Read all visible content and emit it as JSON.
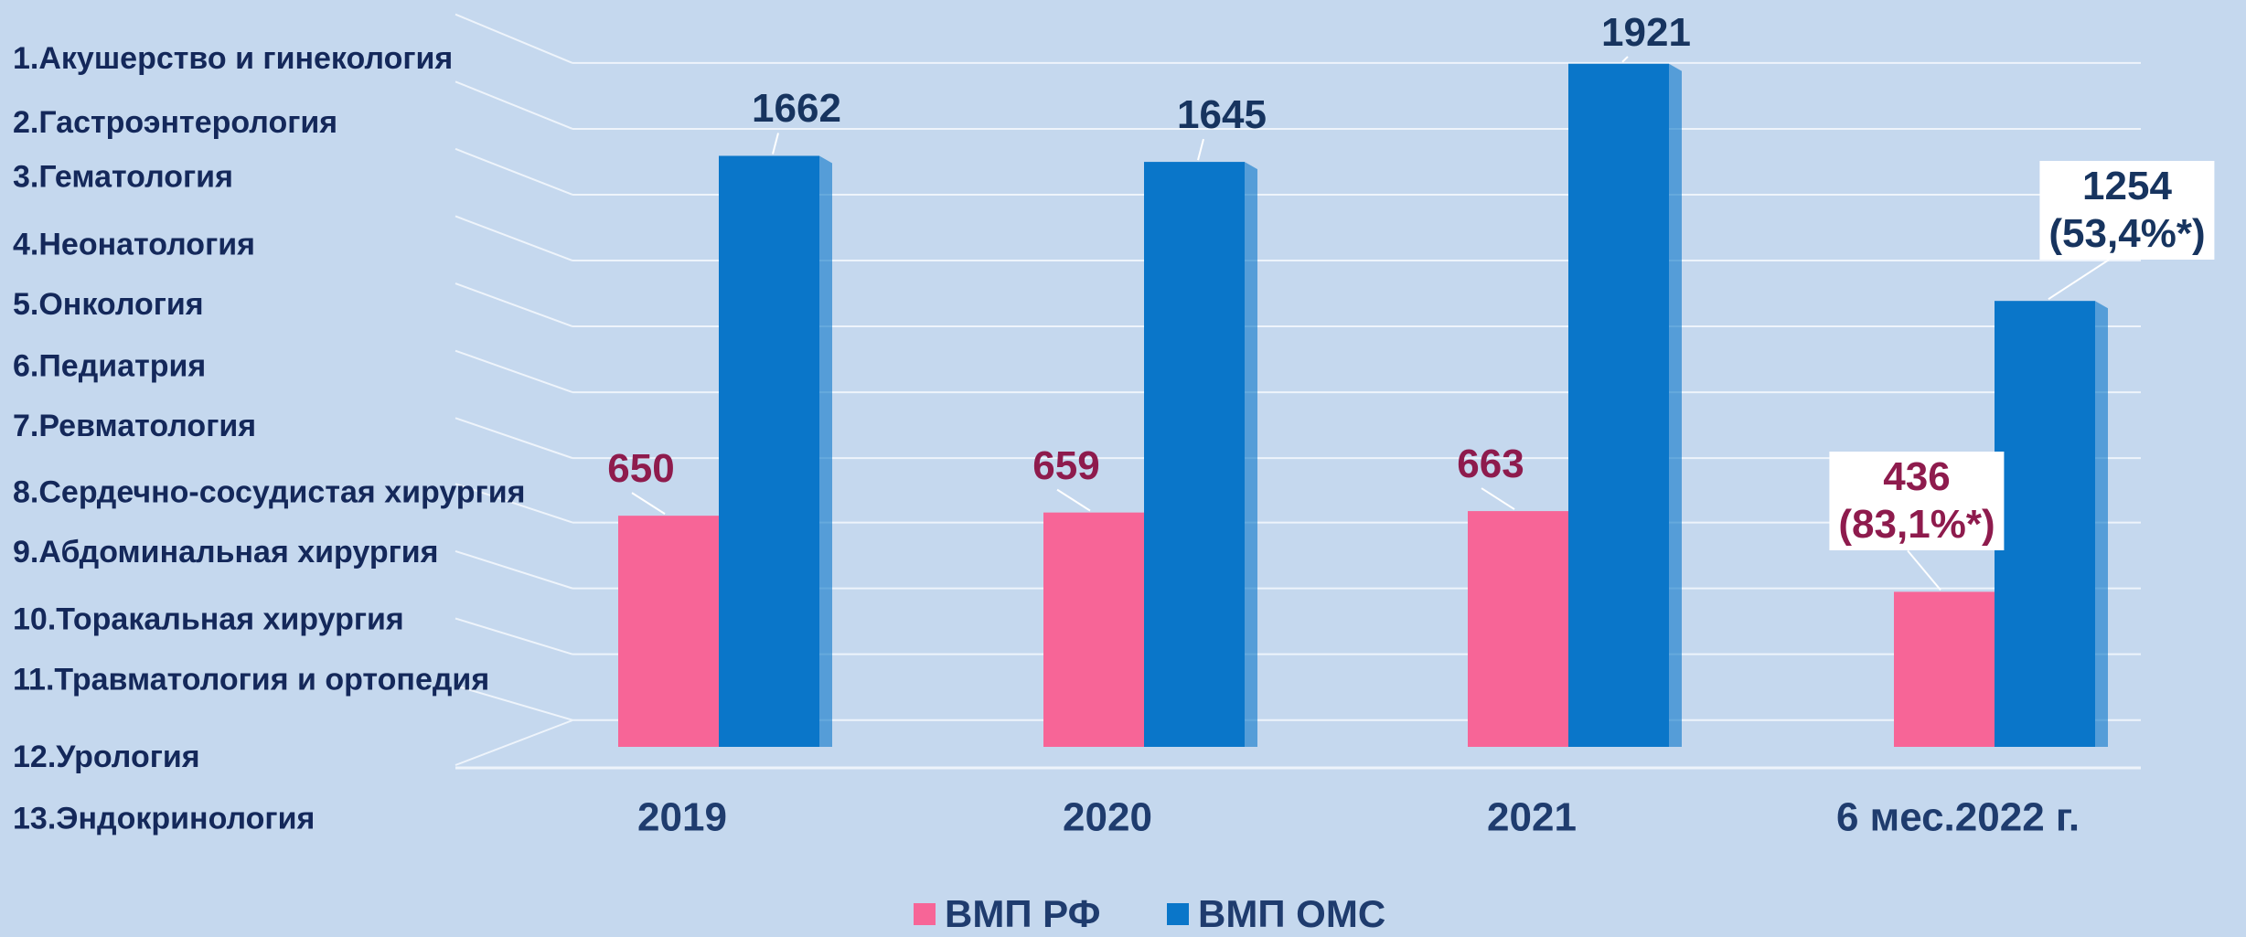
{
  "chart_data": {
    "type": "bar",
    "annotations": [
      "1.Акушерство и гинекология",
      "2.Гастроэнтерология",
      "3.Гематология",
      "4.Неонатология",
      "5.Онкология",
      "6.Педиатрия",
      "7.Ревматология",
      "8.Сердечно-сосудистая хирургия",
      "9.Абдоминальная хирургия",
      "10.Торакальная хирургия",
      "11.Травматология и ортопедия",
      "12.Урология",
      "13.Эндокринология"
    ],
    "categories": [
      "2019",
      "2020",
      "2021",
      "6 мес.2022 г."
    ],
    "series": [
      {
        "name": "ВМП РФ",
        "color": "#f76597",
        "values": [
          650,
          659,
          663,
          436
        ],
        "value_labels": [
          "650",
          "659",
          "663",
          "436\n(83,1%*)"
        ]
      },
      {
        "name": "ВМП ОМС",
        "color": "#0a76c9",
        "values": [
          1662,
          1645,
          1921,
          1254
        ],
        "value_labels": [
          "1662",
          "1645",
          "1921",
          "1254\n(53,4%*)"
        ]
      }
    ],
    "ylim": [
      0,
      2000
    ]
  }
}
